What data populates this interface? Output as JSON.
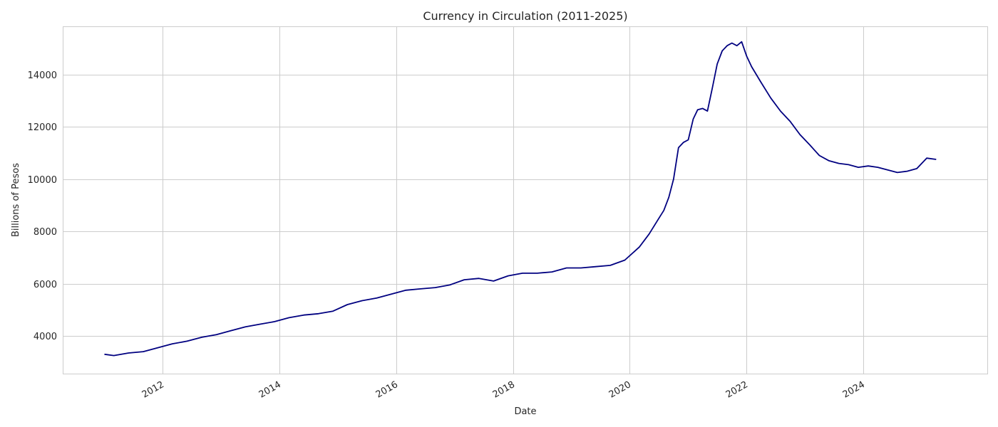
{
  "chart_data": {
    "type": "line",
    "title": "Currency in Circulation (2011-2025)",
    "xlabel": "Date",
    "ylabel": "Billions of Pesos",
    "grid": true,
    "legend": "none",
    "xlim": [
      "2010-04-15",
      "2026-02-15"
    ],
    "ylim": [
      2560,
      15840
    ],
    "x_ticks": [
      "2012-01-01",
      "2014-01-01",
      "2016-01-01",
      "2018-01-01",
      "2020-01-01",
      "2022-01-01",
      "2024-01-01"
    ],
    "x_tick_labels": [
      "2012",
      "2014",
      "2016",
      "2018",
      "2020",
      "2022",
      "2024"
    ],
    "y_ticks": [
      4000,
      6000,
      8000,
      10000,
      12000,
      14000
    ],
    "y_tick_labels": [
      "4000",
      "6000",
      "8000",
      "10000",
      "12000",
      "14000"
    ],
    "line_color": "#000080",
    "series": [
      {
        "x": [
          "2011-01-01",
          "2011-03-01",
          "2011-06-01",
          "2011-09-01",
          "2011-12-01",
          "2012-03-01",
          "2012-06-01",
          "2012-09-01",
          "2012-12-01",
          "2013-03-01",
          "2013-06-01",
          "2013-09-01",
          "2013-12-01",
          "2014-03-01",
          "2014-06-01",
          "2014-09-01",
          "2014-12-01",
          "2015-03-01",
          "2015-06-01",
          "2015-09-01",
          "2015-12-01",
          "2016-03-01",
          "2016-06-01",
          "2016-09-01",
          "2016-12-01",
          "2017-03-01",
          "2017-06-01",
          "2017-09-01",
          "2017-12-01",
          "2018-03-01",
          "2018-06-01",
          "2018-09-01",
          "2018-12-01",
          "2019-03-01",
          "2019-06-01",
          "2019-09-01",
          "2019-12-01",
          "2020-03-01",
          "2020-05-01",
          "2020-07-01",
          "2020-08-01",
          "2020-09-01",
          "2020-10-01",
          "2020-11-01",
          "2020-12-01",
          "2021-01-01",
          "2021-02-01",
          "2021-03-01",
          "2021-04-01",
          "2021-05-01",
          "2021-06-01",
          "2021-07-01",
          "2021-08-01",
          "2021-09-01",
          "2021-10-01",
          "2021-11-01",
          "2021-12-01",
          "2022-01-01",
          "2022-02-01",
          "2022-04-01",
          "2022-06-01",
          "2022-08-01",
          "2022-10-01",
          "2022-12-01",
          "2023-02-01",
          "2023-04-01",
          "2023-06-01",
          "2023-08-01",
          "2023-10-01",
          "2023-12-01",
          "2024-02-01",
          "2024-04-01",
          "2024-06-01",
          "2024-08-01",
          "2024-10-01",
          "2024-12-01",
          "2025-02-01",
          "2025-04-01"
        ],
        "values": [
          3300,
          3250,
          3350,
          3400,
          3550,
          3700,
          3800,
          3950,
          4050,
          4200,
          4350,
          4450,
          4550,
          4700,
          4800,
          4850,
          4950,
          5200,
          5350,
          5450,
          5600,
          5750,
          5800,
          5850,
          5950,
          6150,
          6200,
          6100,
          6300,
          6400,
          6400,
          6450,
          6600,
          6600,
          6650,
          6700,
          6900,
          7400,
          7900,
          8500,
          8800,
          9300,
          10000,
          11200,
          11400,
          11500,
          12300,
          12650,
          12700,
          12600,
          13500,
          14400,
          14900,
          15100,
          15200,
          15100,
          15250,
          14700,
          14300,
          13700,
          13100,
          12600,
          12200,
          11700,
          11300,
          10900,
          10700,
          10600,
          10550,
          10450,
          10500,
          10450,
          10350,
          10250,
          10300,
          10400,
          10800,
          10750
        ]
      }
    ]
  }
}
